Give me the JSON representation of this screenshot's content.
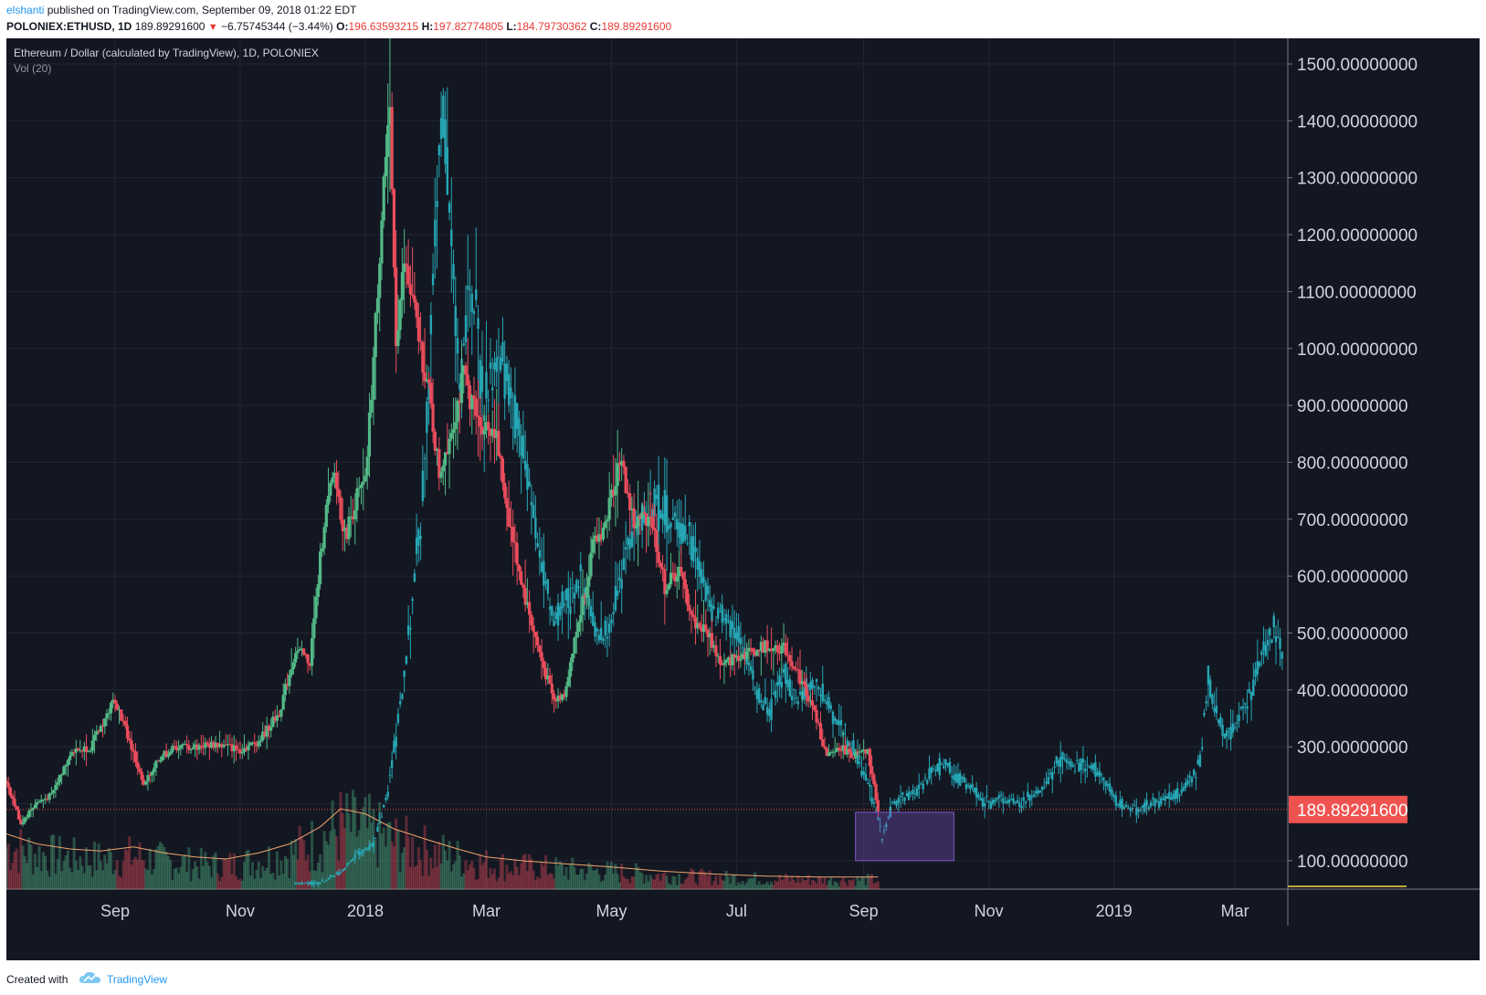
{
  "header": {
    "author": "elshanti",
    "published_text": "published on TradingView.com, September 09, 2018 01:22 EDT",
    "symbol": "POLONIEX:ETHUSD, 1D",
    "last_price": "189.89291600",
    "change": "−6.75745344 (−3.44%)",
    "o_label": "O:",
    "o_value": "196.63593215",
    "h_label": "H:",
    "h_value": "197.82774805",
    "l_label": "L:",
    "l_value": "184.79730362",
    "c_label": "C:",
    "c_value": "189.89291600"
  },
  "legend": {
    "title": "Ethereum / Dollar (calculated by TradingView), 1D, POLONIEX",
    "volume": "Vol (20)"
  },
  "footer": {
    "created_with": "Created with",
    "brand": "TradingView"
  },
  "colors": {
    "background": "#131722",
    "grid": "#232632",
    "up": "#53b987",
    "down": "#eb4d5c",
    "projection": "#26a6b4",
    "highlight": "#7e57c2",
    "price_label_bg": "#ef5350",
    "volume_ma": "#f0a46c"
  },
  "chart_data": {
    "type": "candlestick",
    "y_axis": {
      "min": 50,
      "max": 1545,
      "ticks": [
        100,
        200,
        300,
        400,
        500,
        600,
        700,
        800,
        900,
        1000,
        1100,
        1200,
        1300,
        1400,
        1500
      ],
      "tick_labels": [
        "100.00000000",
        "200.00000000",
        "300.00000000",
        "400.00000000",
        "500.00000000",
        "600.00000000",
        "700.00000000",
        "800.00000000",
        "900.00000000",
        "1000.00000000",
        "1100.00000000",
        "1200.00000000",
        "1300.00000000",
        "1400.00000000",
        "1500.00000000"
      ]
    },
    "x_axis": {
      "tick_labels": [
        "Sep",
        "Nov",
        "2018",
        "Mar",
        "May",
        "Jul",
        "Sep",
        "Nov",
        "2019",
        "Mar"
      ],
      "tick_dates": [
        "2017-09-01",
        "2017-11-01",
        "2018-01-01",
        "2018-03-01",
        "2018-05-01",
        "2018-07-01",
        "2018-09-01",
        "2018-11-01",
        "2019-01-01",
        "2019-03-01"
      ],
      "start": "2017-07-10",
      "end": "2019-03-25"
    },
    "current_price": 189.892916,
    "current_price_label": "189.89291600",
    "series": [
      {
        "name": "POLONIEX:ETHUSD",
        "style": "candles",
        "points": [
          [
            "2017-07-10",
            240
          ],
          [
            "2017-07-17",
            165
          ],
          [
            "2017-07-24",
            200
          ],
          [
            "2017-08-01",
            215
          ],
          [
            "2017-08-10",
            290
          ],
          [
            "2017-08-20",
            300
          ],
          [
            "2017-09-01",
            385
          ],
          [
            "2017-09-08",
            310
          ],
          [
            "2017-09-15",
            230
          ],
          [
            "2017-09-22",
            280
          ],
          [
            "2017-10-01",
            300
          ],
          [
            "2017-10-10",
            300
          ],
          [
            "2017-10-20",
            305
          ],
          [
            "2017-11-01",
            295
          ],
          [
            "2017-11-10",
            310
          ],
          [
            "2017-11-20",
            360
          ],
          [
            "2017-11-28",
            470
          ],
          [
            "2017-12-05",
            450
          ],
          [
            "2017-12-12",
            700
          ],
          [
            "2017-12-17",
            780
          ],
          [
            "2017-12-22",
            670
          ],
          [
            "2017-12-28",
            740
          ],
          [
            "2018-01-01",
            760
          ],
          [
            "2018-01-05",
            980
          ],
          [
            "2018-01-10",
            1300
          ],
          [
            "2018-01-13",
            1390
          ],
          [
            "2018-01-16",
            1020
          ],
          [
            "2018-01-20",
            1150
          ],
          [
            "2018-01-25",
            1060
          ],
          [
            "2018-02-01",
            920
          ],
          [
            "2018-02-06",
            780
          ],
          [
            "2018-02-12",
            860
          ],
          [
            "2018-02-18",
            950
          ],
          [
            "2018-02-25",
            870
          ],
          [
            "2018-03-05",
            860
          ],
          [
            "2018-03-12",
            700
          ],
          [
            "2018-03-20",
            560
          ],
          [
            "2018-03-28",
            450
          ],
          [
            "2018-04-03",
            380
          ],
          [
            "2018-04-08",
            395
          ],
          [
            "2018-04-15",
            520
          ],
          [
            "2018-04-22",
            650
          ],
          [
            "2018-04-28",
            690
          ],
          [
            "2018-05-05",
            810
          ],
          [
            "2018-05-12",
            690
          ],
          [
            "2018-05-20",
            710
          ],
          [
            "2018-05-27",
            580
          ],
          [
            "2018-06-03",
            610
          ],
          [
            "2018-06-10",
            520
          ],
          [
            "2018-06-17",
            500
          ],
          [
            "2018-06-24",
            440
          ],
          [
            "2018-07-01",
            460
          ],
          [
            "2018-07-10",
            470
          ],
          [
            "2018-07-18",
            480
          ],
          [
            "2018-07-25",
            470
          ],
          [
            "2018-08-01",
            420
          ],
          [
            "2018-08-08",
            360
          ],
          [
            "2018-08-14",
            280
          ],
          [
            "2018-08-20",
            300
          ],
          [
            "2018-08-27",
            285
          ],
          [
            "2018-09-03",
            290
          ],
          [
            "2018-09-06",
            230
          ],
          [
            "2018-09-08",
            189.89
          ]
        ]
      },
      {
        "name": "",
        "style": "projection",
        "points": [
          [
            "2017-11-28",
            60
          ],
          [
            "2017-12-10",
            60
          ],
          [
            "2017-12-20",
            80
          ],
          [
            "2017-12-28",
            110
          ],
          [
            "2018-01-05",
            130
          ],
          [
            "2018-01-12",
            220
          ],
          [
            "2018-01-20",
            420
          ],
          [
            "2018-01-28",
            700
          ],
          [
            "2018-02-02",
            1000
          ],
          [
            "2018-02-05",
            1300
          ],
          [
            "2018-02-08",
            1420
          ],
          [
            "2018-02-12",
            1180
          ],
          [
            "2018-02-16",
            950
          ],
          [
            "2018-02-22",
            1100
          ],
          [
            "2018-02-28",
            900
          ],
          [
            "2018-03-05",
            980
          ],
          [
            "2018-03-12",
            930
          ],
          [
            "2018-03-20",
            800
          ],
          [
            "2018-03-28",
            620
          ],
          [
            "2018-04-03",
            520
          ],
          [
            "2018-04-10",
            560
          ],
          [
            "2018-04-17",
            600
          ],
          [
            "2018-04-24",
            490
          ],
          [
            "2018-05-01",
            520
          ],
          [
            "2018-05-08",
            650
          ],
          [
            "2018-05-15",
            700
          ],
          [
            "2018-05-22",
            730
          ],
          [
            "2018-05-29",
            700
          ],
          [
            "2018-06-05",
            690
          ],
          [
            "2018-06-12",
            620
          ],
          [
            "2018-06-19",
            540
          ],
          [
            "2018-06-26",
            530
          ],
          [
            "2018-07-03",
            500
          ],
          [
            "2018-07-10",
            400
          ],
          [
            "2018-07-17",
            360
          ],
          [
            "2018-07-24",
            430
          ],
          [
            "2018-07-31",
            380
          ],
          [
            "2018-08-07",
            420
          ],
          [
            "2018-08-14",
            380
          ],
          [
            "2018-08-21",
            330
          ],
          [
            "2018-08-28",
            290
          ],
          [
            "2018-09-04",
            230
          ],
          [
            "2018-09-10",
            140
          ],
          [
            "2018-09-15",
            200
          ],
          [
            "2018-09-20",
            210
          ],
          [
            "2018-09-27",
            220
          ],
          [
            "2018-10-04",
            260
          ],
          [
            "2018-10-11",
            270
          ],
          [
            "2018-10-18",
            240
          ],
          [
            "2018-10-25",
            220
          ],
          [
            "2018-11-01",
            200
          ],
          [
            "2018-11-08",
            210
          ],
          [
            "2018-11-15",
            200
          ],
          [
            "2018-11-22",
            210
          ],
          [
            "2018-11-29",
            240
          ],
          [
            "2018-12-06",
            280
          ],
          [
            "2018-12-13",
            265
          ],
          [
            "2018-12-20",
            270
          ],
          [
            "2018-12-27",
            245
          ],
          [
            "2019-01-03",
            200
          ],
          [
            "2019-01-10",
            190
          ],
          [
            "2019-01-17",
            195
          ],
          [
            "2019-01-24",
            205
          ],
          [
            "2019-01-31",
            215
          ],
          [
            "2019-02-07",
            240
          ],
          [
            "2019-02-12",
            280
          ],
          [
            "2019-02-16",
            420
          ],
          [
            "2019-02-19",
            360
          ],
          [
            "2019-02-24",
            320
          ],
          [
            "2019-03-01",
            330
          ],
          [
            "2019-03-06",
            380
          ],
          [
            "2019-03-11",
            420
          ],
          [
            "2019-03-16",
            480
          ],
          [
            "2019-03-20",
            510
          ],
          [
            "2019-03-24",
            460
          ]
        ]
      },
      {
        "name": "Vol (20)",
        "style": "volume",
        "points": [
          [
            "2017-07-10",
            0.55
          ],
          [
            "2017-07-25",
            0.45
          ],
          [
            "2017-08-10",
            0.4
          ],
          [
            "2017-08-25",
            0.38
          ],
          [
            "2017-09-10",
            0.42
          ],
          [
            "2017-09-25",
            0.36
          ],
          [
            "2017-10-10",
            0.32
          ],
          [
            "2017-10-25",
            0.3
          ],
          [
            "2017-11-10",
            0.36
          ],
          [
            "2017-11-25",
            0.45
          ],
          [
            "2017-12-10",
            0.62
          ],
          [
            "2017-12-20",
            0.8
          ],
          [
            "2018-01-01",
            0.75
          ],
          [
            "2018-01-15",
            0.6
          ],
          [
            "2018-01-30",
            0.5
          ],
          [
            "2018-02-15",
            0.4
          ],
          [
            "2018-03-01",
            0.32
          ],
          [
            "2018-03-20",
            0.28
          ],
          [
            "2018-04-10",
            0.25
          ],
          [
            "2018-05-01",
            0.22
          ],
          [
            "2018-05-25",
            0.18
          ],
          [
            "2018-06-20",
            0.15
          ],
          [
            "2018-07-15",
            0.13
          ],
          [
            "2018-08-10",
            0.12
          ],
          [
            "2018-09-08",
            0.12
          ]
        ]
      }
    ],
    "annotations": [
      {
        "type": "rectangle",
        "from": "2018-08-28",
        "to": "2018-10-15",
        "low": 100,
        "high": 185
      }
    ],
    "grid": true
  }
}
